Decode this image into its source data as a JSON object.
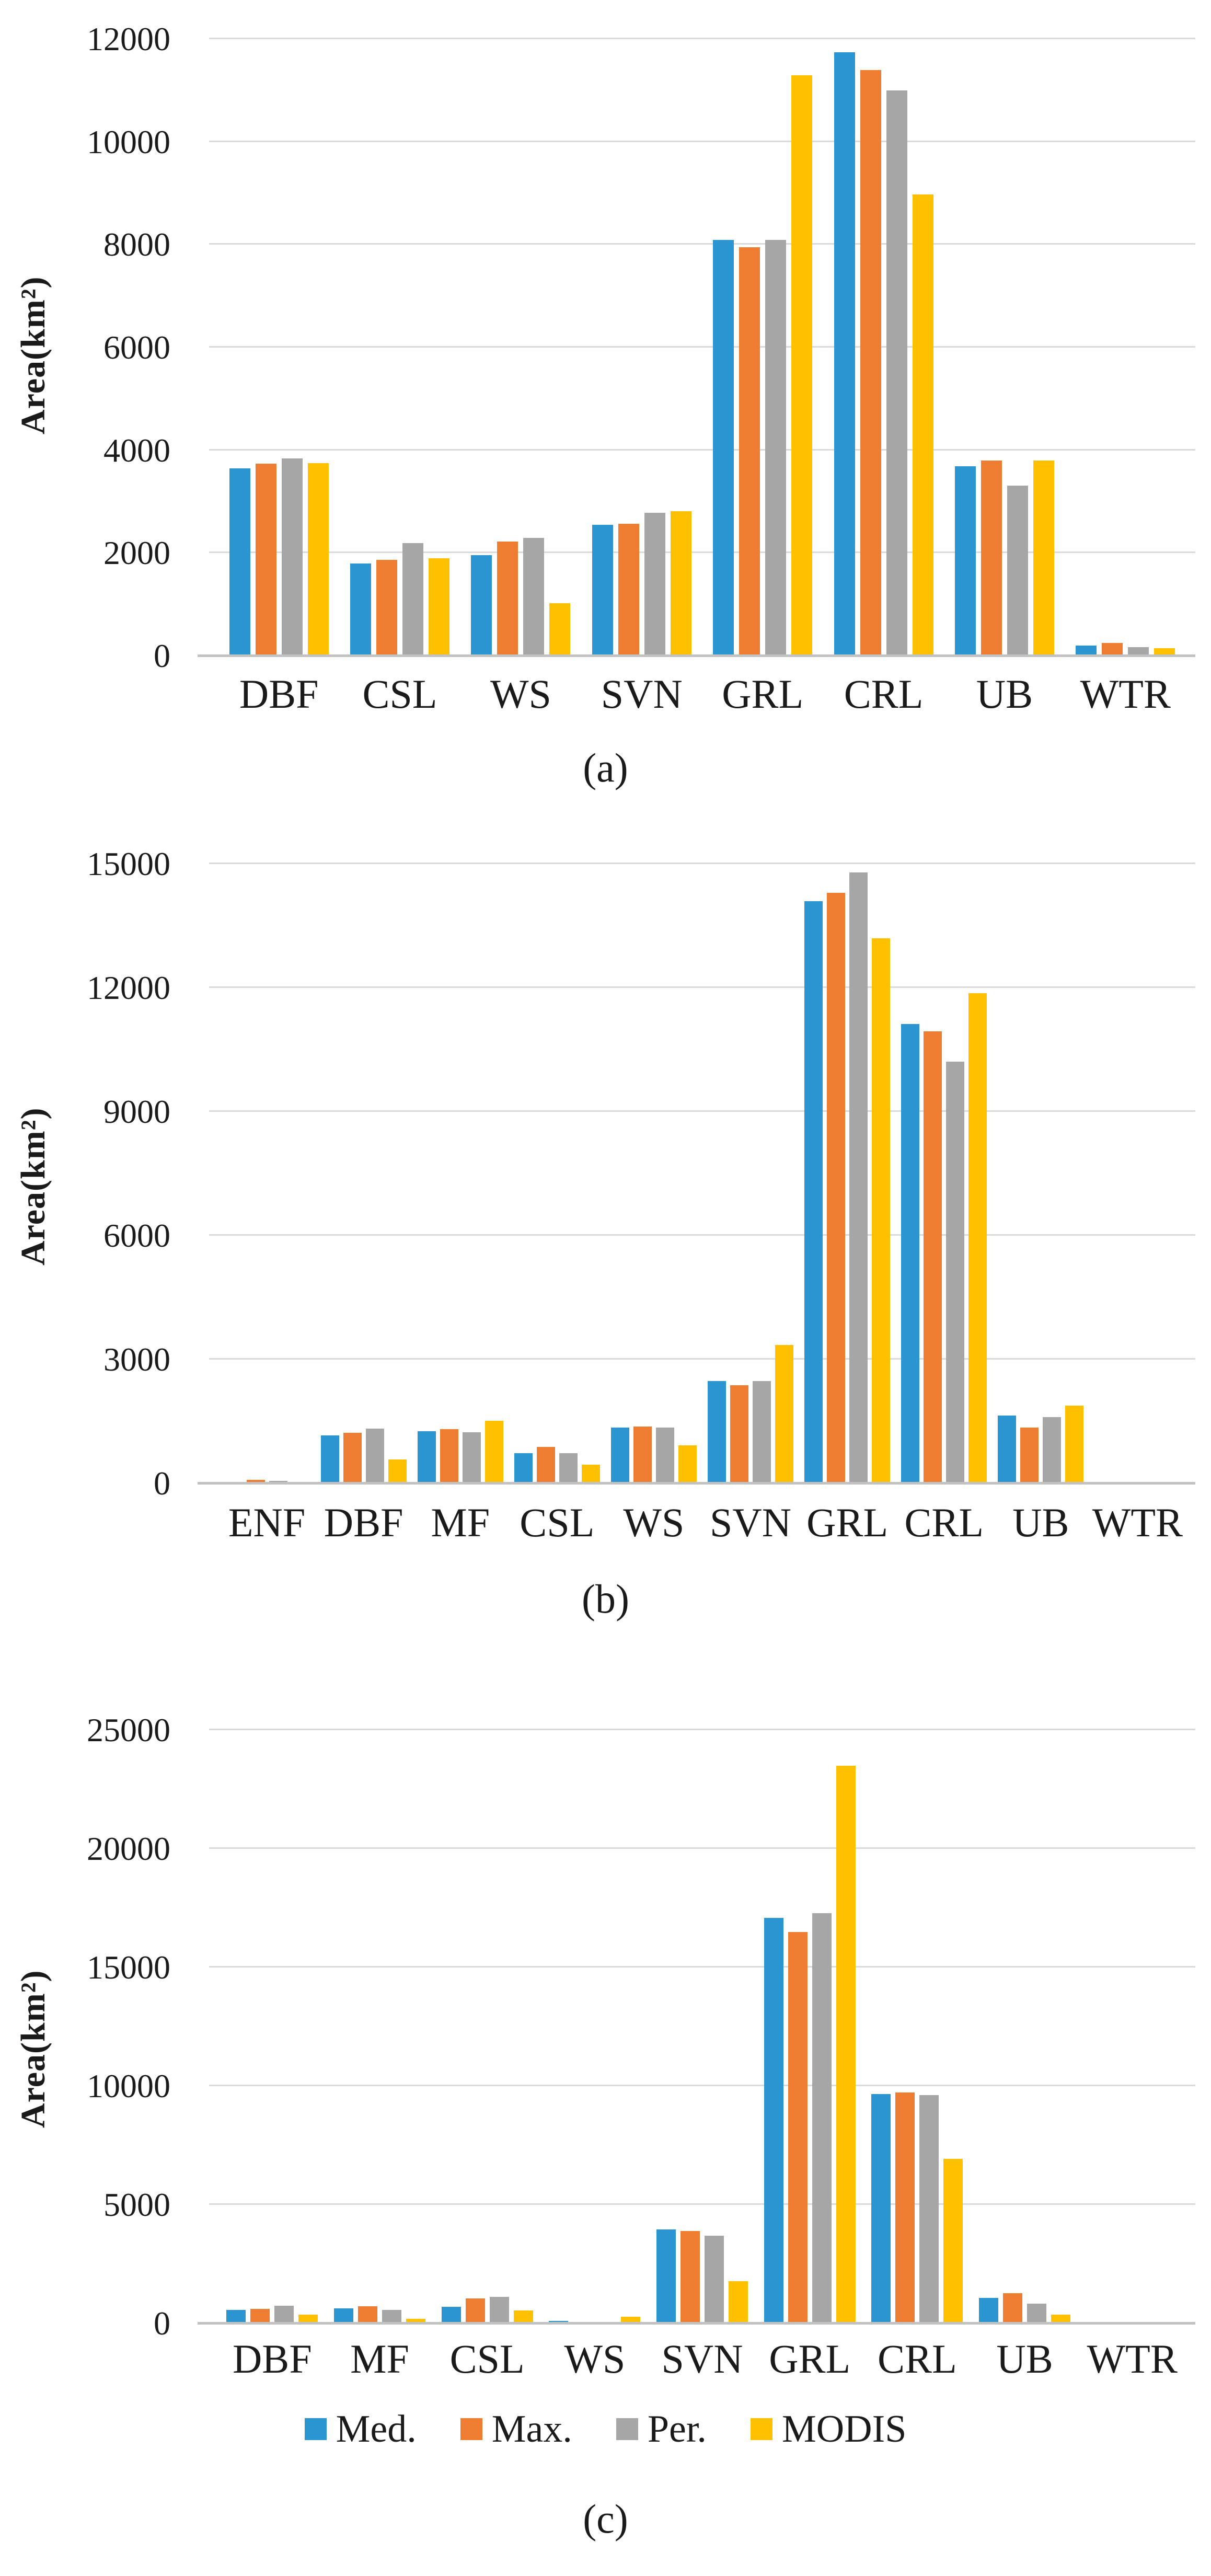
{
  "series": [
    {
      "name": "Med.",
      "color": "#2b95d2"
    },
    {
      "name": "Max.",
      "color": "#ef7d31"
    },
    {
      "name": "Per.",
      "color": "#a6a6a6"
    },
    {
      "name": "MODIS",
      "color": "#ffc000"
    }
  ],
  "grid_color": "#dadada",
  "axis_color": "#c2c2c2",
  "chart_data": [
    {
      "type": "bar",
      "caption": "(a)",
      "ylabel": "Area(km²)",
      "ylim": [
        0,
        12000
      ],
      "yticks": [
        {
          "label": "0",
          "value": 0
        },
        {
          "label": "2000",
          "value": 2000
        },
        {
          "label": "4000",
          "value": 4000
        },
        {
          "label": "6000",
          "value": 6000
        },
        {
          "label": "8000",
          "value": 8000
        },
        {
          "label": "10000",
          "value": 10000
        },
        {
          "label": "12000",
          "value": 12000
        }
      ],
      "categories": [
        "DBF",
        "CSL",
        "WS",
        "SVN",
        "GRL",
        "CRL",
        "UB",
        "WTR"
      ],
      "series": [
        {
          "name": "Med.",
          "values": [
            3650,
            1800,
            1960,
            2550,
            8100,
            11750,
            3690,
            200
          ]
        },
        {
          "name": "Max.",
          "values": [
            3740,
            1870,
            2230,
            2570,
            7950,
            11400,
            3800,
            250
          ]
        },
        {
          "name": "Per.",
          "values": [
            3840,
            2200,
            2300,
            2790,
            8100,
            11000,
            3320,
            170
          ]
        },
        {
          "name": "MODIS",
          "values": [
            3750,
            1900,
            1030,
            2820,
            11300,
            8980,
            3800,
            150
          ]
        }
      ]
    },
    {
      "type": "bar",
      "caption": "(b)",
      "ylabel": "Area(km²)",
      "ylim": [
        0,
        15000
      ],
      "yticks": [
        {
          "label": "0",
          "value": 0
        },
        {
          "label": "3000",
          "value": 3000
        },
        {
          "label": "6000",
          "value": 6000
        },
        {
          "label": "9000",
          "value": 9000
        },
        {
          "label": "12000",
          "value": 12000
        },
        {
          "label": "15000",
          "value": 15000
        }
      ],
      "categories": [
        "ENF",
        "DBF",
        "MF",
        "CSL",
        "WS",
        "SVN",
        "GRL",
        "CRL",
        "UB",
        "WTR"
      ],
      "series": [
        {
          "name": "Med.",
          "values": [
            20,
            1170,
            1270,
            730,
            1360,
            2480,
            14100,
            11130,
            1640,
            0
          ]
        },
        {
          "name": "Max.",
          "values": [
            90,
            1230,
            1320,
            890,
            1380,
            2380,
            14300,
            10950,
            1350,
            0
          ]
        },
        {
          "name": "Per.",
          "values": [
            60,
            1330,
            1240,
            740,
            1360,
            2480,
            14800,
            10220,
            1610,
            0
          ]
        },
        {
          "name": "MODIS",
          "values": [
            20,
            580,
            1520,
            460,
            930,
            3360,
            13200,
            11870,
            1890,
            0
          ]
        }
      ]
    },
    {
      "type": "bar",
      "caption": "(c)",
      "ylabel": "Area(km²)",
      "ylim": [
        0,
        25000
      ],
      "yticks": [
        {
          "label": "0",
          "value": 0
        },
        {
          "label": "5000",
          "value": 5000
        },
        {
          "label": "10000",
          "value": 10000
        },
        {
          "label": "15000",
          "value": 15000
        },
        {
          "label": "20000",
          "value": 20000
        },
        {
          "label": "25000",
          "value": 25000
        }
      ],
      "categories": [
        "DBF",
        "MF",
        "CSL",
        "WS",
        "SVN",
        "GRL",
        "CRL",
        "UB",
        "WTR"
      ],
      "series": [
        {
          "name": "Med.",
          "values": [
            580,
            630,
            700,
            120,
            3970,
            17100,
            9680,
            1070,
            0
          ]
        },
        {
          "name": "Max.",
          "values": [
            620,
            720,
            1060,
            50,
            3910,
            16500,
            9740,
            1270,
            0
          ]
        },
        {
          "name": "Per.",
          "values": [
            750,
            580,
            1130,
            30,
            3700,
            17300,
            9620,
            830,
            0
          ]
        },
        {
          "name": "MODIS",
          "values": [
            370,
            200,
            560,
            280,
            1780,
            23500,
            6940,
            370,
            0
          ]
        }
      ]
    }
  ]
}
